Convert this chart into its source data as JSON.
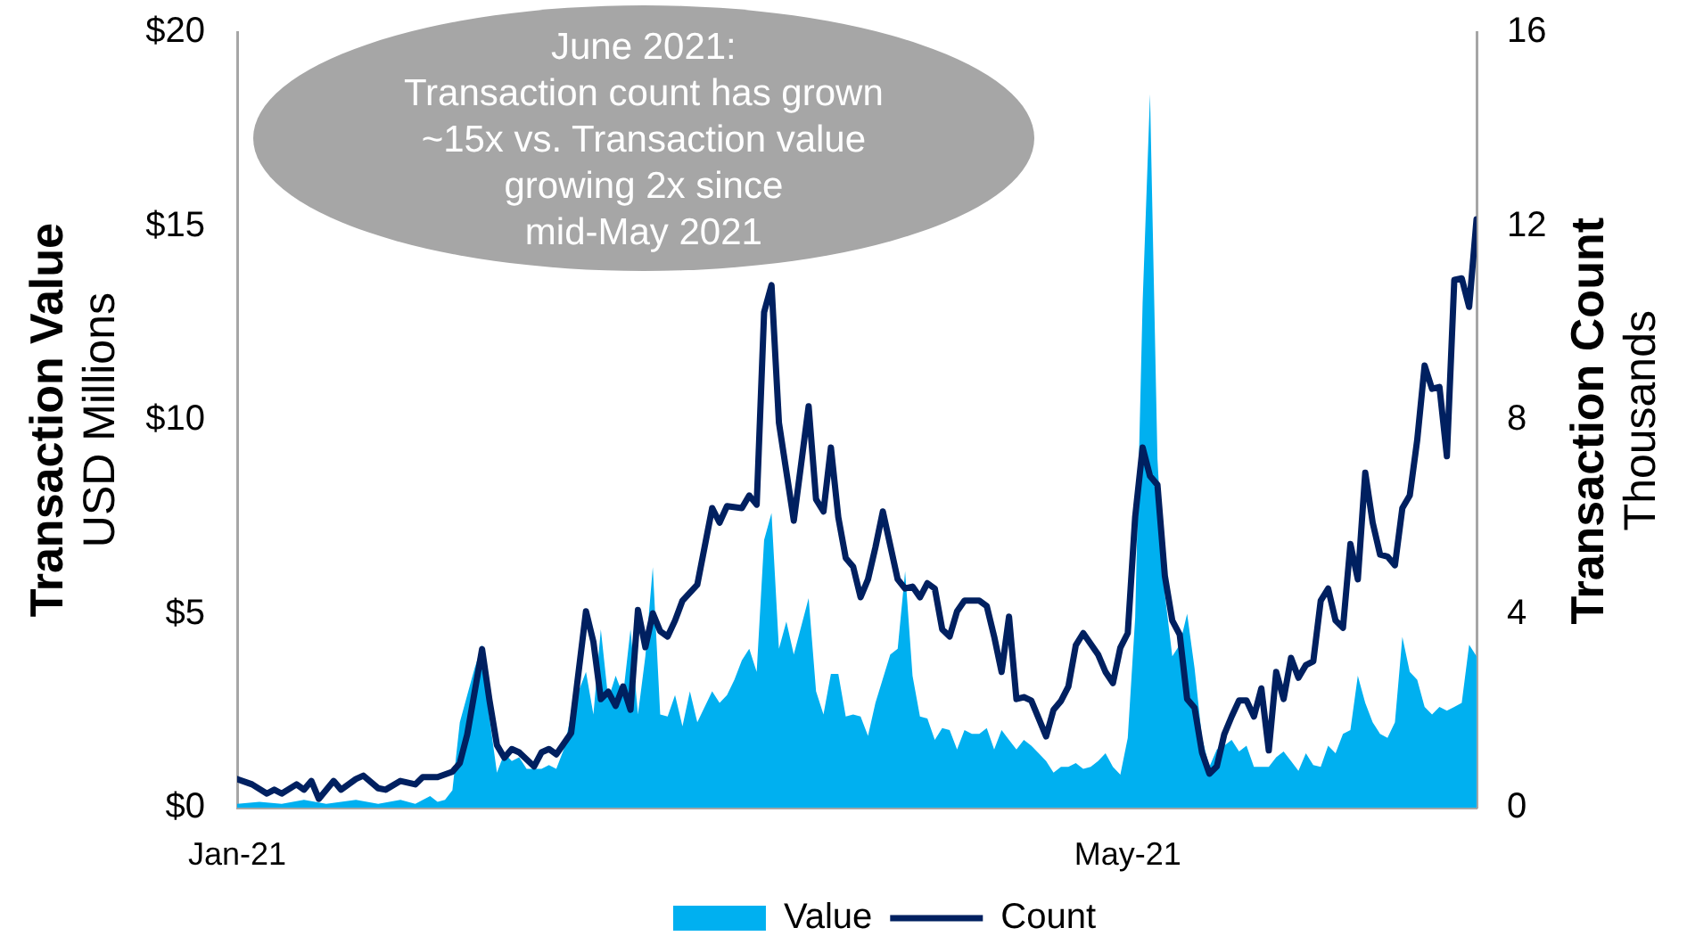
{
  "chart_data": {
    "type": "line",
    "annotations": [
      "June 2021:\nTransaction count has grown\n~15x vs. Transaction value\ngrowing 2x since\nmid-May 2021"
    ],
    "ylabel": "Transaction Value\nUSD Millions",
    "y2label": "Transaction Count\nThousands",
    "xlim": [
      "2021-01-01",
      "2021-06-17"
    ],
    "xticks": [
      {
        "value": "2021-01-01",
        "label": "Jan-21"
      },
      {
        "value": "2021-05-01",
        "label": "May-21"
      }
    ],
    "ylim": [
      0,
      20
    ],
    "yticks": [
      {
        "value": 0,
        "label": "$0"
      },
      {
        "value": 5,
        "label": "$5"
      },
      {
        "value": 10,
        "label": "$10"
      },
      {
        "value": 15,
        "label": "$15"
      },
      {
        "value": 20,
        "label": "$20"
      }
    ],
    "y2lim": [
      0,
      16
    ],
    "y2ticks": [
      0,
      4,
      8,
      12,
      16
    ],
    "grid": false,
    "legend": "bottom",
    "marker": "none",
    "series": [
      {
        "name": "Value",
        "type": "area",
        "color": "#00b0f0",
        "x": [
          "2021-01-01",
          "2021-01-04",
          "2021-01-07",
          "2021-01-10",
          "2021-01-13",
          "2021-01-17",
          "2021-01-20",
          "2021-01-23",
          "2021-01-25",
          "2021-01-27",
          "2021-01-28",
          "2021-01-29",
          "2021-01-30",
          "2021-01-31",
          "2021-02-01",
          "2021-02-02",
          "2021-02-03",
          "2021-02-04",
          "2021-02-05",
          "2021-02-06",
          "2021-02-07",
          "2021-02-08",
          "2021-02-09",
          "2021-02-10",
          "2021-02-11",
          "2021-02-12",
          "2021-02-13",
          "2021-02-14",
          "2021-02-15",
          "2021-02-16",
          "2021-02-17",
          "2021-02-18",
          "2021-02-19",
          "2021-02-20",
          "2021-02-21",
          "2021-02-22",
          "2021-02-23",
          "2021-02-24",
          "2021-02-25",
          "2021-02-26",
          "2021-02-27",
          "2021-02-28",
          "2021-03-01",
          "2021-03-02",
          "2021-03-03",
          "2021-03-04",
          "2021-03-06",
          "2021-03-07",
          "2021-03-08",
          "2021-03-09",
          "2021-03-10",
          "2021-03-11",
          "2021-03-12",
          "2021-03-13",
          "2021-03-14",
          "2021-03-15",
          "2021-03-16",
          "2021-03-17",
          "2021-03-19",
          "2021-03-20",
          "2021-03-21",
          "2021-03-22",
          "2021-03-23",
          "2021-03-24",
          "2021-03-25",
          "2021-03-26",
          "2021-03-27",
          "2021-03-28",
          "2021-03-30",
          "2021-03-31",
          "2021-04-01",
          "2021-04-02",
          "2021-04-03",
          "2021-04-04",
          "2021-04-05",
          "2021-04-06",
          "2021-04-07",
          "2021-04-08",
          "2021-04-09",
          "2021-04-10",
          "2021-04-11",
          "2021-04-12",
          "2021-04-13",
          "2021-04-14",
          "2021-04-15",
          "2021-04-16",
          "2021-04-17",
          "2021-04-18",
          "2021-04-19",
          "2021-04-20",
          "2021-04-21",
          "2021-04-22",
          "2021-04-23",
          "2021-04-24",
          "2021-04-25",
          "2021-04-26",
          "2021-04-27",
          "2021-04-28",
          "2021-04-29",
          "2021-04-30",
          "2021-05-01",
          "2021-05-02",
          "2021-05-03",
          "2021-05-04",
          "2021-05-05",
          "2021-05-06",
          "2021-05-07",
          "2021-05-08",
          "2021-05-09",
          "2021-05-10",
          "2021-05-11",
          "2021-05-12",
          "2021-05-13",
          "2021-05-14",
          "2021-05-15",
          "2021-05-16",
          "2021-05-17",
          "2021-05-18",
          "2021-05-19",
          "2021-05-20",
          "2021-05-21",
          "2021-05-22",
          "2021-05-23",
          "2021-05-24",
          "2021-05-25",
          "2021-05-26",
          "2021-05-27",
          "2021-05-28",
          "2021-05-29",
          "2021-05-30",
          "2021-05-31",
          "2021-06-01",
          "2021-06-02",
          "2021-06-03",
          "2021-06-04",
          "2021-06-05",
          "2021-06-06",
          "2021-06-07",
          "2021-06-08",
          "2021-06-09",
          "2021-06-10",
          "2021-06-11",
          "2021-06-12",
          "2021-06-13",
          "2021-06-14",
          "2021-06-15",
          "2021-06-16",
          "2021-06-17"
        ],
        "values": [
          0.1,
          0.15,
          0.1,
          0.2,
          0.1,
          0.2,
          0.1,
          0.2,
          0.1,
          0.3,
          0.15,
          0.2,
          0.45,
          2.2,
          2.9,
          3.6,
          4.2,
          2.3,
          0.9,
          1.4,
          1.2,
          1.3,
          1.0,
          1.0,
          1.0,
          1.1,
          1.0,
          1.5,
          2.4,
          3.0,
          3.5,
          2.4,
          4.6,
          2.8,
          3.4,
          2.9,
          4.6,
          2.4,
          3.9,
          6.2,
          2.4,
          2.35,
          2.9,
          2.1,
          3.0,
          2.2,
          3.0,
          2.7,
          2.9,
          3.3,
          3.8,
          4.1,
          3.5,
          6.9,
          7.6,
          4.1,
          4.8,
          3.95,
          5.4,
          3.0,
          2.4,
          3.45,
          3.45,
          2.35,
          2.4,
          2.35,
          1.85,
          2.7,
          3.95,
          4.1,
          6.1,
          3.4,
          2.35,
          2.3,
          1.75,
          2.05,
          2.0,
          1.5,
          2.0,
          1.9,
          1.9,
          2.05,
          1.5,
          2.0,
          1.75,
          1.5,
          1.75,
          1.6,
          1.4,
          1.2,
          0.9,
          1.05,
          1.05,
          1.15,
          1.0,
          1.05,
          1.2,
          1.4,
          1.05,
          0.85,
          1.8,
          4.9,
          13.0,
          18.4,
          9.0,
          5.5,
          3.9,
          4.2,
          5.0,
          3.6,
          1.8,
          1.05,
          1.5,
          1.6,
          1.75,
          1.45,
          1.6,
          1.05,
          1.05,
          1.05,
          1.3,
          1.45,
          1.2,
          0.95,
          1.4,
          1.1,
          1.05,
          1.6,
          1.4,
          1.9,
          2.0,
          3.4,
          2.7,
          2.2,
          1.9,
          1.8,
          2.2,
          4.4,
          3.5,
          3.3,
          2.6,
          2.4,
          2.6,
          2.5,
          2.6,
          2.7,
          4.2,
          3.9
        ]
      },
      {
        "name": "Count",
        "type": "line",
        "color": "#002060",
        "axis": "y2",
        "x": [
          "2021-01-01",
          "2021-01-03",
          "2021-01-05",
          "2021-01-06",
          "2021-01-07",
          "2021-01-09",
          "2021-01-10",
          "2021-01-11",
          "2021-01-12",
          "2021-01-14",
          "2021-01-15",
          "2021-01-17",
          "2021-01-18",
          "2021-01-20",
          "2021-01-21",
          "2021-01-23",
          "2021-01-25",
          "2021-01-26",
          "2021-01-28",
          "2021-01-30",
          "2021-01-31",
          "2021-02-01",
          "2021-02-03",
          "2021-02-04",
          "2021-02-05",
          "2021-02-06",
          "2021-02-07",
          "2021-02-08",
          "2021-02-10",
          "2021-02-11",
          "2021-02-12",
          "2021-02-13",
          "2021-02-15",
          "2021-02-17",
          "2021-02-18",
          "2021-02-19",
          "2021-02-20",
          "2021-02-21",
          "2021-02-22",
          "2021-02-23",
          "2021-02-24",
          "2021-02-25",
          "2021-02-26",
          "2021-02-27",
          "2021-02-28",
          "2021-03-01",
          "2021-03-02",
          "2021-03-04",
          "2021-03-06",
          "2021-03-07",
          "2021-03-08",
          "2021-03-10",
          "2021-03-11",
          "2021-03-12",
          "2021-03-13",
          "2021-03-14",
          "2021-03-15",
          "2021-03-17",
          "2021-03-19",
          "2021-03-20",
          "2021-03-21",
          "2021-03-22",
          "2021-03-23",
          "2021-03-24",
          "2021-03-25",
          "2021-03-26",
          "2021-03-27",
          "2021-03-28",
          "2021-03-29",
          "2021-03-31",
          "2021-04-01",
          "2021-04-02",
          "2021-04-03",
          "2021-04-04",
          "2021-04-05",
          "2021-04-06",
          "2021-04-07",
          "2021-04-08",
          "2021-04-09",
          "2021-04-11",
          "2021-04-12",
          "2021-04-13",
          "2021-04-14",
          "2021-04-15",
          "2021-04-16",
          "2021-04-17",
          "2021-04-18",
          "2021-04-19",
          "2021-04-20",
          "2021-04-21",
          "2021-04-22",
          "2021-04-23",
          "2021-04-24",
          "2021-04-25",
          "2021-04-27",
          "2021-04-28",
          "2021-04-29",
          "2021-04-30",
          "2021-05-01",
          "2021-05-02",
          "2021-05-03",
          "2021-05-04",
          "2021-05-05",
          "2021-05-06",
          "2021-05-07",
          "2021-05-08",
          "2021-05-09",
          "2021-05-10",
          "2021-05-11",
          "2021-05-12",
          "2021-05-13",
          "2021-05-14",
          "2021-05-15",
          "2021-05-16",
          "2021-05-17",
          "2021-05-18",
          "2021-05-19",
          "2021-05-20",
          "2021-05-21",
          "2021-05-22",
          "2021-05-23",
          "2021-05-24",
          "2021-05-25",
          "2021-05-26",
          "2021-05-27",
          "2021-05-28",
          "2021-05-29",
          "2021-05-30",
          "2021-05-31",
          "2021-06-01",
          "2021-06-02",
          "2021-06-03",
          "2021-06-04",
          "2021-06-05",
          "2021-06-06",
          "2021-06-07",
          "2021-06-08",
          "2021-06-09",
          "2021-06-10",
          "2021-06-11",
          "2021-06-12",
          "2021-06-13",
          "2021-06-14",
          "2021-06-15",
          "2021-06-16",
          "2021-06-17"
        ],
        "values": [
          0.59,
          0.48,
          0.29,
          0.37,
          0.29,
          0.48,
          0.37,
          0.55,
          0.18,
          0.55,
          0.37,
          0.59,
          0.66,
          0.4,
          0.37,
          0.55,
          0.48,
          0.63,
          0.63,
          0.74,
          0.92,
          1.51,
          3.27,
          2.21,
          1.29,
          1.03,
          1.21,
          1.14,
          0.85,
          1.14,
          1.21,
          1.1,
          1.54,
          4.05,
          3.42,
          2.24,
          2.39,
          2.1,
          2.5,
          2.02,
          4.08,
          3.31,
          4.01,
          3.64,
          3.53,
          3.86,
          4.27,
          4.6,
          6.18,
          5.88,
          6.22,
          6.18,
          6.44,
          6.25,
          10.22,
          10.78,
          7.94,
          5.92,
          8.28,
          6.36,
          6.11,
          7.43,
          5.99,
          5.15,
          4.97,
          4.34,
          4.71,
          5.37,
          6.11,
          4.71,
          4.52,
          4.56,
          4.34,
          4.63,
          4.52,
          3.68,
          3.53,
          4.05,
          4.27,
          4.27,
          4.16,
          3.53,
          2.8,
          3.94,
          2.24,
          2.28,
          2.21,
          1.84,
          1.47,
          2.02,
          2.2,
          2.5,
          3.35,
          3.6,
          3.16,
          2.8,
          2.57,
          3.3,
          3.6,
          6.0,
          7.43,
          6.84,
          6.66,
          4.78,
          3.86,
          3.57,
          2.24,
          2.06,
          1.14,
          0.7,
          0.85,
          1.51,
          1.88,
          2.21,
          2.21,
          1.88,
          2.46,
          1.18,
          2.8,
          2.24,
          3.09,
          2.68,
          2.94,
          3.02,
          4.27,
          4.52,
          3.86,
          3.71,
          5.44,
          4.71,
          6.91,
          5.88,
          5.22,
          5.18,
          5.0,
          6.18,
          6.44,
          7.58,
          9.12,
          8.64,
          8.68,
          7.25,
          10.89,
          10.92,
          10.33,
          12.14
        ]
      }
    ]
  }
}
